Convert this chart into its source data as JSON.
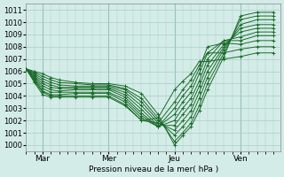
{
  "background_color": "#d4ece7",
  "grid_color": "#a8cdc8",
  "line_color": "#1a6b2a",
  "title": "Pression niveau de la mer( hPa )",
  "x_ticks": [
    "Mar",
    "Mer",
    "Jeu",
    "Ven"
  ],
  "x_tick_positions": [
    12,
    60,
    108,
    156
  ],
  "x_vline_positions": [
    12,
    60,
    108,
    156
  ],
  "ylim": [
    999.5,
    1011.5
  ],
  "xlim": [
    0,
    185
  ],
  "yticks": [
    1000,
    1001,
    1002,
    1003,
    1004,
    1005,
    1006,
    1007,
    1008,
    1009,
    1010,
    1011
  ],
  "lines": [
    {
      "x": [
        0,
        6,
        12,
        18,
        24,
        36,
        48,
        60,
        72,
        84,
        96,
        108,
        114,
        120,
        126,
        132,
        144,
        156,
        168,
        180
      ],
      "y": [
        1006.2,
        1006.0,
        1005.8,
        1005.5,
        1005.3,
        1005.1,
        1005.0,
        1005.0,
        1004.8,
        1004.2,
        1002.5,
        1000.0,
        1000.8,
        1001.5,
        1002.8,
        1004.5,
        1007.2,
        1010.5,
        1010.8,
        1010.8
      ]
    },
    {
      "x": [
        0,
        6,
        12,
        18,
        24,
        36,
        48,
        60,
        72,
        84,
        96,
        108,
        114,
        120,
        126,
        132,
        144,
        156,
        168,
        180
      ],
      "y": [
        1006.2,
        1005.9,
        1005.6,
        1005.3,
        1005.1,
        1005.0,
        1004.9,
        1004.9,
        1004.6,
        1003.8,
        1002.2,
        1000.3,
        1001.0,
        1001.8,
        1003.2,
        1005.0,
        1007.5,
        1010.2,
        1010.5,
        1010.5
      ]
    },
    {
      "x": [
        0,
        6,
        12,
        18,
        24,
        36,
        48,
        60,
        72,
        84,
        96,
        108,
        114,
        120,
        126,
        132,
        144,
        156,
        168,
        180
      ],
      "y": [
        1006.2,
        1005.8,
        1005.4,
        1005.1,
        1004.9,
        1004.8,
        1004.8,
        1004.8,
        1004.5,
        1003.5,
        1002.0,
        1000.8,
        1001.5,
        1002.3,
        1003.8,
        1005.5,
        1007.8,
        1009.8,
        1010.2,
        1010.2
      ]
    },
    {
      "x": [
        0,
        6,
        12,
        18,
        24,
        36,
        48,
        60,
        72,
        84,
        96,
        108,
        114,
        120,
        126,
        132,
        144,
        156,
        168,
        180
      ],
      "y": [
        1006.2,
        1005.7,
        1005.2,
        1004.9,
        1004.7,
        1004.7,
        1004.7,
        1004.7,
        1004.3,
        1003.2,
        1001.8,
        1001.2,
        1002.0,
        1002.8,
        1004.3,
        1006.0,
        1008.0,
        1009.5,
        1009.8,
        1009.8
      ]
    },
    {
      "x": [
        0,
        6,
        12,
        18,
        24,
        36,
        48,
        60,
        72,
        84,
        96,
        108,
        114,
        120,
        126,
        132,
        144,
        156,
        168,
        180
      ],
      "y": [
        1006.2,
        1005.6,
        1005.0,
        1004.7,
        1004.6,
        1004.6,
        1004.6,
        1004.6,
        1004.1,
        1002.9,
        1001.6,
        1001.6,
        1002.5,
        1003.3,
        1004.8,
        1006.5,
        1008.2,
        1009.2,
        1009.5,
        1009.5
      ]
    },
    {
      "x": [
        0,
        6,
        12,
        18,
        24,
        36,
        48,
        60,
        72,
        84,
        96,
        108,
        114,
        120,
        126,
        132,
        144,
        156,
        168,
        180
      ],
      "y": [
        1006.2,
        1005.5,
        1004.8,
        1004.5,
        1004.4,
        1004.5,
        1004.5,
        1004.5,
        1003.9,
        1002.6,
        1001.5,
        1002.0,
        1003.0,
        1003.8,
        1005.2,
        1007.0,
        1008.5,
        1008.8,
        1009.2,
        1009.2
      ]
    },
    {
      "x": [
        0,
        6,
        12,
        18,
        24,
        36,
        48,
        60,
        72,
        84,
        96,
        108,
        114,
        120,
        126,
        132,
        144,
        156,
        168,
        180
      ],
      "y": [
        1006.2,
        1005.4,
        1004.6,
        1004.3,
        1004.3,
        1004.3,
        1004.3,
        1004.3,
        1003.7,
        1002.4,
        1001.5,
        1002.5,
        1003.5,
        1004.3,
        1005.8,
        1007.5,
        1008.5,
        1008.5,
        1008.9,
        1008.9
      ]
    },
    {
      "x": [
        0,
        6,
        12,
        18,
        24,
        36,
        48,
        60,
        72,
        84,
        96,
        108,
        114,
        120,
        126,
        132,
        144,
        156,
        168,
        180
      ],
      "y": [
        1006.2,
        1005.3,
        1004.4,
        1004.1,
        1004.1,
        1004.2,
        1004.2,
        1004.2,
        1003.5,
        1002.2,
        1001.5,
        1003.0,
        1004.0,
        1004.8,
        1006.2,
        1008.0,
        1008.3,
        1008.2,
        1008.5,
        1008.5
      ]
    },
    {
      "x": [
        0,
        6,
        12,
        18,
        24,
        36,
        48,
        60,
        72,
        84,
        96,
        108,
        114,
        120,
        126,
        132,
        144,
        156,
        168,
        180
      ],
      "y": [
        1006.2,
        1005.2,
        1004.3,
        1004.0,
        1004.0,
        1004.0,
        1004.0,
        1004.0,
        1003.3,
        1002.0,
        1001.8,
        1003.5,
        1004.5,
        1005.3,
        1006.5,
        1007.5,
        1007.5,
        1007.8,
        1008.0,
        1008.0
      ]
    },
    {
      "x": [
        0,
        6,
        12,
        18,
        24,
        36,
        48,
        60,
        72,
        84,
        96,
        108,
        114,
        120,
        126,
        132,
        144,
        156,
        168,
        180
      ],
      "y": [
        1006.2,
        1005.1,
        1004.1,
        1003.9,
        1003.9,
        1003.9,
        1003.9,
        1003.9,
        1003.2,
        1002.0,
        1002.2,
        1004.5,
        1005.2,
        1005.8,
        1006.8,
        1006.8,
        1007.0,
        1007.2,
        1007.5,
        1007.5
      ]
    }
  ]
}
